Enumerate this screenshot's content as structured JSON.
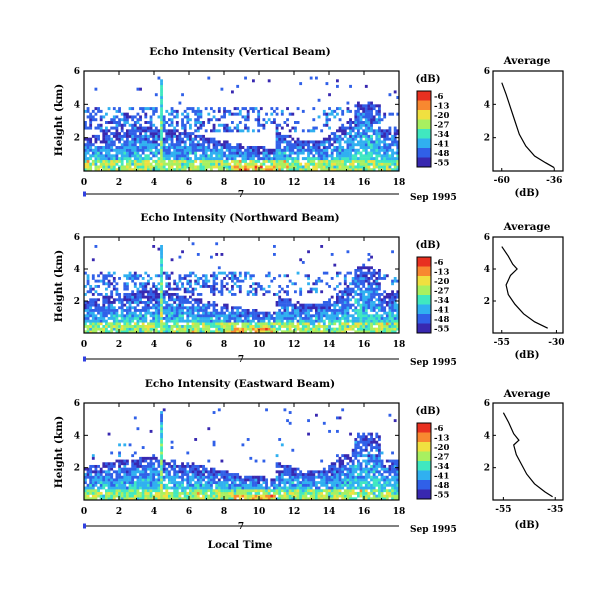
{
  "chart_data": {
    "type": "heatmap",
    "x_axis_ticks": [
      "0",
      "2",
      "4",
      "6",
      "8",
      "10",
      "12",
      "14",
      "16",
      "18"
    ],
    "xlim": [
      0,
      18
    ],
    "ylim": [
      0,
      6
    ],
    "y_axis_ticks": [
      "2",
      "4",
      "6"
    ],
    "ylabel": "Height (km)",
    "date_label": "Sep 1995",
    "day_label": "7",
    "xlabel": "Local Time",
    "colorbar": {
      "unit": "(dB)",
      "ticks": [
        "-6",
        "-13",
        "-20",
        "-27",
        "-34",
        "-41",
        "-48",
        "-55"
      ],
      "colors": [
        "#e83020",
        "#f88830",
        "#f0e040",
        "#a8f060",
        "#40e8c0",
        "#30b0f0",
        "#3060e8",
        "#3828b0"
      ]
    },
    "panels": [
      {
        "title": "Echo Intensity (Vertical Beam)",
        "profile": {
          "title": "Average",
          "xlabel": "(dB)",
          "x_ticks": [
            "-60",
            "-36"
          ],
          "xlim": [
            -64,
            -32
          ],
          "points": [
            [
              -60,
              5.3
            ],
            [
              -58,
              4.6
            ],
            [
              -56,
              3.8
            ],
            [
              -54,
              3.0
            ],
            [
              -52,
              2.2
            ],
            [
              -49,
              1.5
            ],
            [
              -45,
              0.9
            ],
            [
              -40,
              0.5
            ],
            [
              -36,
              0.2
            ]
          ]
        }
      },
      {
        "title": "Echo Intensity (Northward Beam)",
        "profile": {
          "title": "Average",
          "xlabel": "(dB)",
          "x_ticks": [
            "-55",
            "-30"
          ],
          "xlim": [
            -59,
            -27
          ],
          "points": [
            [
              -55,
              5.4
            ],
            [
              -52,
              4.8
            ],
            [
              -50,
              4.3
            ],
            [
              -48,
              4.0
            ],
            [
              -51,
              3.6
            ],
            [
              -53,
              3.0
            ],
            [
              -52,
              2.4
            ],
            [
              -49,
              1.8
            ],
            [
              -45,
              1.2
            ],
            [
              -40,
              0.7
            ],
            [
              -34,
              0.3
            ]
          ]
        }
      },
      {
        "title": "Echo Intensity (Eastward Beam)",
        "profile": {
          "title": "Average",
          "xlabel": "(dB)",
          "x_ticks": [
            "-55",
            "-35"
          ],
          "xlim": [
            -59,
            -32
          ],
          "points": [
            [
              -55,
              5.4
            ],
            [
              -53,
              4.8
            ],
            [
              -51,
              4.1
            ],
            [
              -49,
              3.7
            ],
            [
              -51,
              3.4
            ],
            [
              -50,
              2.8
            ],
            [
              -48,
              2.2
            ],
            [
              -46,
              1.6
            ],
            [
              -43,
              1.0
            ],
            [
              -39,
              0.5
            ],
            [
              -36,
              0.2
            ]
          ]
        }
      }
    ]
  }
}
